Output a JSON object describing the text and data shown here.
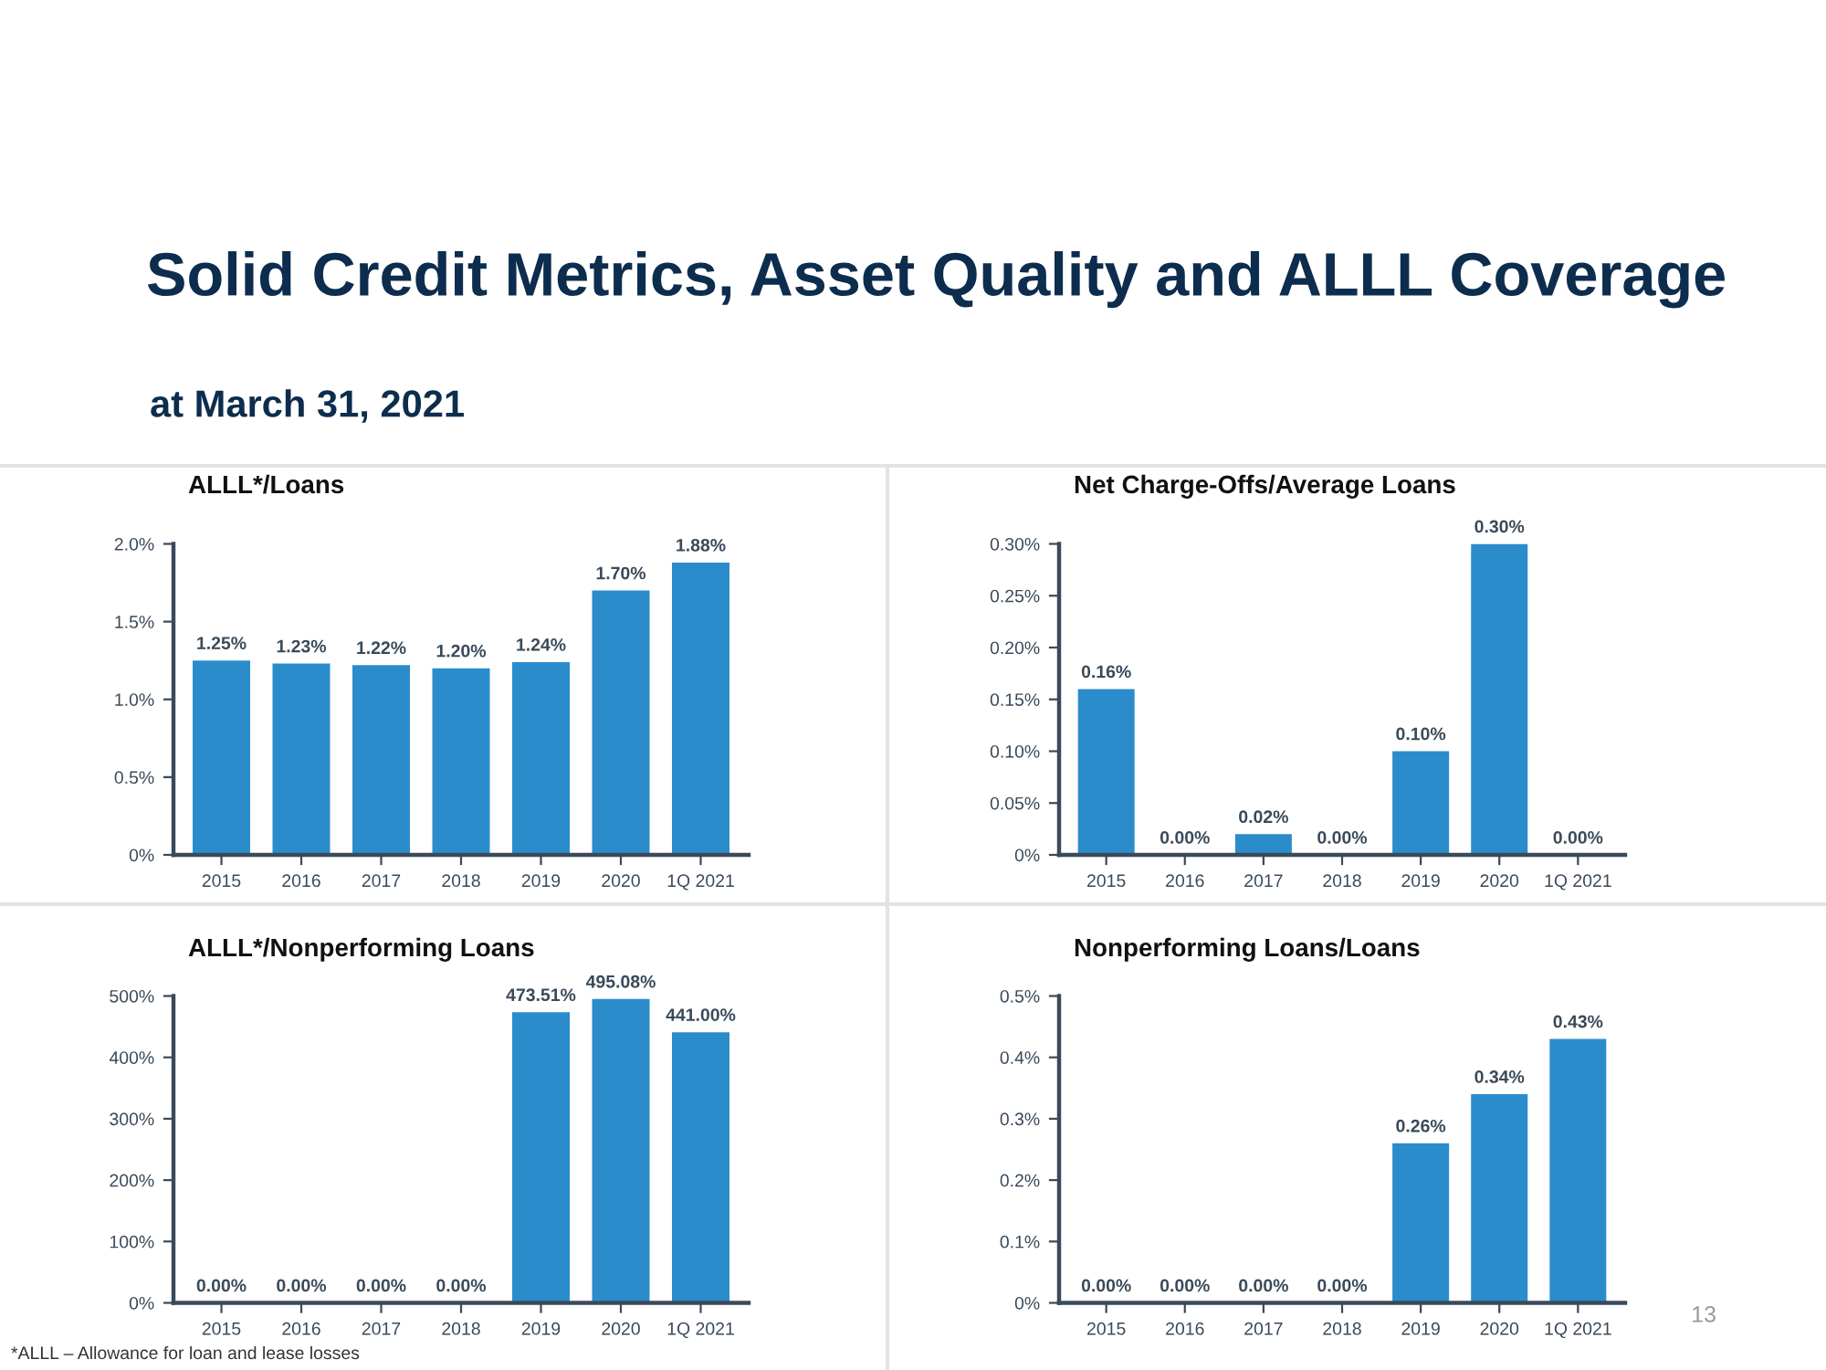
{
  "chart_data": [
    {
      "type": "other",
      "title": "Solid Credit Metrics, Asset Quality and ALLL Coverage",
      "subtitle": "at March 31, 2021",
      "annotations": [
        "*ALLL – Allowance for loan and lease losses",
        "13"
      ]
    },
    {
      "type": "bar",
      "title": "ALLL*/Loans",
      "categories": [
        "2015",
        "2016",
        "2017",
        "2018",
        "2019",
        "2020",
        "1Q 2021"
      ],
      "values": [
        1.25,
        1.23,
        1.22,
        1.2,
        1.24,
        1.7,
        1.88
      ],
      "color": "#2b8ccc",
      "value_labels": [
        "1.25%",
        "1.23%",
        "1.22%",
        "1.20%",
        "1.24%",
        "1.70%",
        "1.88%"
      ],
      "ylim": [
        0,
        2.0
      ],
      "yticks": [
        {
          "value": 0,
          "label": "0%"
        },
        {
          "value": 0.5,
          "label": "0.5%"
        },
        {
          "value": 1.0,
          "label": "1.0%"
        },
        {
          "value": 1.5,
          "label": "1.5%"
        },
        {
          "value": 2.0,
          "label": "2.0%"
        }
      ],
      "grid": false,
      "legend": false
    },
    {
      "type": "bar",
      "title": "Net Charge-Offs/Average Loans",
      "categories": [
        "2015",
        "2016",
        "2017",
        "2018",
        "2019",
        "2020",
        "1Q 2021"
      ],
      "values": [
        0.16,
        0,
        0.02,
        0,
        0.1,
        0.3,
        0
      ],
      "color": "#2b8ccc",
      "value_labels": [
        "0.16%",
        "0.00%",
        "0.02%",
        "0.00%",
        "0.10%",
        "0.30%",
        "0.00%"
      ],
      "ylim": [
        0,
        0.3
      ],
      "yticks": [
        {
          "value": 0,
          "label": "0%"
        },
        {
          "value": 0.05,
          "label": "0.05%"
        },
        {
          "value": 0.1,
          "label": "0.10%"
        },
        {
          "value": 0.15,
          "label": "0.15%"
        },
        {
          "value": 0.2,
          "label": "0.20%"
        },
        {
          "value": 0.25,
          "label": "0.25%"
        },
        {
          "value": 0.3,
          "label": "0.30%"
        }
      ],
      "grid": false,
      "legend": false
    },
    {
      "type": "bar",
      "title": "ALLL*/Nonperforming Loans",
      "categories": [
        "2015",
        "2016",
        "2017",
        "2018",
        "2019",
        "2020",
        "1Q 2021"
      ],
      "values": [
        0,
        0,
        0,
        0,
        473.51,
        495.08,
        441.0
      ],
      "color": "#2b8ccc",
      "value_labels": [
        "0.00%",
        "0.00%",
        "0.00%",
        "0.00%",
        "473.51%",
        "495.08%",
        "441.00%"
      ],
      "ylim": [
        0,
        500
      ],
      "yticks": [
        {
          "value": 0,
          "label": "0%"
        },
        {
          "value": 100,
          "label": "100%"
        },
        {
          "value": 200,
          "label": "200%"
        },
        {
          "value": 300,
          "label": "300%"
        },
        {
          "value": 400,
          "label": "400%"
        },
        {
          "value": 500,
          "label": "500%"
        }
      ],
      "grid": false,
      "legend": false
    },
    {
      "type": "bar",
      "title": "Nonperforming Loans/Loans",
      "categories": [
        "2015",
        "2016",
        "2017",
        "2018",
        "2019",
        "2020",
        "1Q 2021"
      ],
      "values": [
        0,
        0,
        0,
        0,
        0.26,
        0.34,
        0.43
      ],
      "color": "#2b8ccc",
      "value_labels": [
        "0.00%",
        "0.00%",
        "0.00%",
        "0.00%",
        "0.26%",
        "0.34%",
        "0.43%"
      ],
      "ylim": [
        0,
        0.5
      ],
      "yticks": [
        {
          "value": 0,
          "label": "0%"
        },
        {
          "value": 0.1,
          "label": "0.1%"
        },
        {
          "value": 0.2,
          "label": "0.2%"
        },
        {
          "value": 0.3,
          "label": "0.3%"
        },
        {
          "value": 0.4,
          "label": "0.4%"
        },
        {
          "value": 0.5,
          "label": "0.5%"
        }
      ],
      "grid": false,
      "legend": false
    }
  ]
}
